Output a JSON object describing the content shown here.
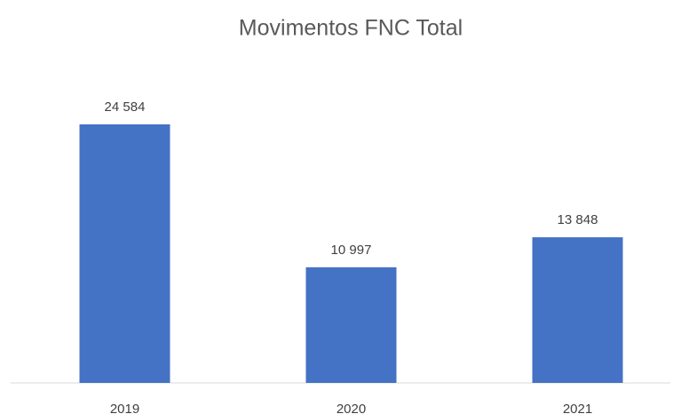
{
  "chart_data": {
    "type": "bar",
    "title": "Movimentos FNC Total",
    "categories": [
      "2019",
      "2020",
      "2021"
    ],
    "values": [
      24584,
      10997,
      13848
    ],
    "value_labels": [
      "24 584",
      "10 997",
      "13 848"
    ],
    "color": "#4472c4"
  }
}
